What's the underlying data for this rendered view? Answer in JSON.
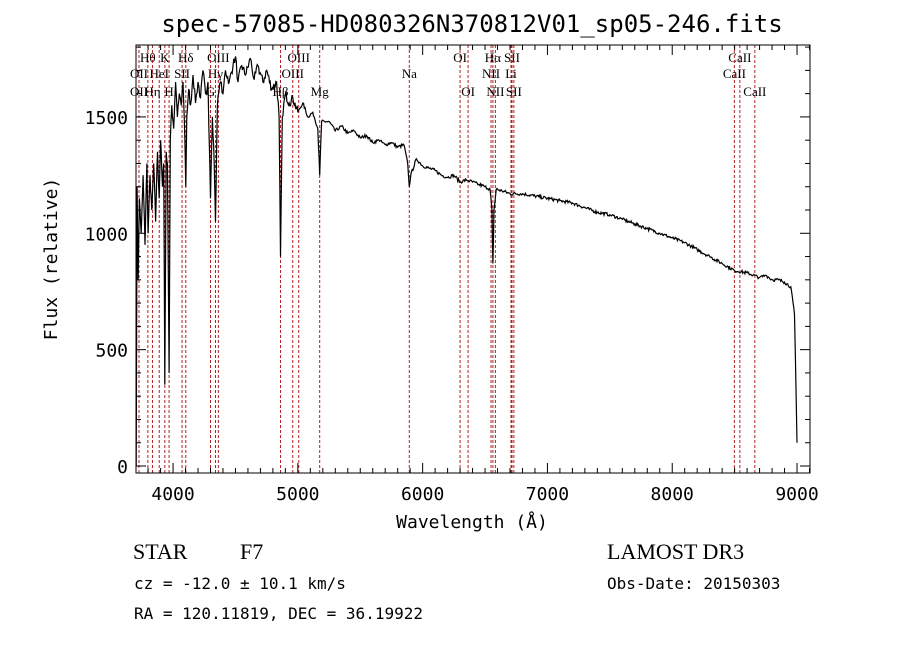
{
  "chart_data": {
    "type": "line",
    "title": "spec-57085-HD080326N370812V01_sp05-246.fits",
    "xlabel": "Wavelength (Å)",
    "ylabel": "Flux (relative)",
    "xlim": [
      3703,
      9104
    ],
    "ylim": [
      -30,
      1809
    ],
    "xticks": [
      4000,
      5000,
      6000,
      7000,
      8000,
      9000
    ],
    "yticks": [
      0,
      500,
      1000,
      1500
    ],
    "grid": false,
    "line_color": "#000000",
    "marker_color": "#b22222",
    "series": [
      {
        "name": "spectrum",
        "points": [
          [
            3705,
            0
          ],
          [
            3712,
            1200
          ],
          [
            3720,
            800
          ],
          [
            3730,
            1150
          ],
          [
            3745,
            1000
          ],
          [
            3760,
            1250
          ],
          [
            3775,
            950
          ],
          [
            3790,
            1300
          ],
          [
            3800,
            1000
          ],
          [
            3815,
            1250
          ],
          [
            3830,
            1100
          ],
          [
            3845,
            1300
          ],
          [
            3860,
            1050
          ],
          [
            3875,
            1350
          ],
          [
            3889,
            1150
          ],
          [
            3900,
            1400
          ],
          [
            3915,
            1200
          ],
          [
            3925,
            1300
          ],
          [
            3934,
            350
          ],
          [
            3945,
            1350
          ],
          [
            3955,
            1300
          ],
          [
            3968,
            400
          ],
          [
            3978,
            1400
          ],
          [
            3990,
            1550
          ],
          [
            4005,
            1450
          ],
          [
            4020,
            1650
          ],
          [
            4035,
            1500
          ],
          [
            4050,
            1600
          ],
          [
            4065,
            1550
          ],
          [
            4080,
            1650
          ],
          [
            4095,
            1400
          ],
          [
            4102,
            1200
          ],
          [
            4110,
            1500
          ],
          [
            4125,
            1620
          ],
          [
            4140,
            1550
          ],
          [
            4160,
            1680
          ],
          [
            4180,
            1560
          ],
          [
            4200,
            1650
          ],
          [
            4220,
            1580
          ],
          [
            4240,
            1700
          ],
          [
            4260,
            1600
          ],
          [
            4280,
            1650
          ],
          [
            4300,
            1150
          ],
          [
            4315,
            1500
          ],
          [
            4330,
            1300
          ],
          [
            4340,
            1050
          ],
          [
            4355,
            1550
          ],
          [
            4380,
            1650
          ],
          [
            4400,
            1600
          ],
          [
            4420,
            1700
          ],
          [
            4450,
            1650
          ],
          [
            4480,
            1720
          ],
          [
            4500,
            1760
          ],
          [
            4520,
            1650
          ],
          [
            4550,
            1720
          ],
          [
            4580,
            1680
          ],
          [
            4620,
            1750
          ],
          [
            4650,
            1660
          ],
          [
            4680,
            1720
          ],
          [
            4720,
            1650
          ],
          [
            4750,
            1700
          ],
          [
            4790,
            1620
          ],
          [
            4830,
            1650
          ],
          [
            4850,
            1500
          ],
          [
            4861,
            900
          ],
          [
            4875,
            1500
          ],
          [
            4900,
            1600
          ],
          [
            4930,
            1560
          ],
          [
            4960,
            1580
          ],
          [
            5000,
            1520
          ],
          [
            5040,
            1560
          ],
          [
            5080,
            1500
          ],
          [
            5120,
            1520
          ],
          [
            5160,
            1450
          ],
          [
            5175,
            1250
          ],
          [
            5190,
            1480
          ],
          [
            5250,
            1480
          ],
          [
            5300,
            1440
          ],
          [
            5350,
            1460
          ],
          [
            5400,
            1430
          ],
          [
            5450,
            1440
          ],
          [
            5500,
            1410
          ],
          [
            5550,
            1420
          ],
          [
            5600,
            1390
          ],
          [
            5650,
            1400
          ],
          [
            5700,
            1380
          ],
          [
            5750,
            1390
          ],
          [
            5800,
            1370
          ],
          [
            5850,
            1380
          ],
          [
            5880,
            1300
          ],
          [
            5893,
            1200
          ],
          [
            5905,
            1250
          ],
          [
            5950,
            1320
          ],
          [
            6000,
            1290
          ],
          [
            6050,
            1280
          ],
          [
            6100,
            1270
          ],
          [
            6150,
            1250
          ],
          [
            6200,
            1240
          ],
          [
            6250,
            1250
          ],
          [
            6300,
            1220
          ],
          [
            6350,
            1230
          ],
          [
            6400,
            1220
          ],
          [
            6450,
            1210
          ],
          [
            6500,
            1200
          ],
          [
            6540,
            1190
          ],
          [
            6555,
            1100
          ],
          [
            6563,
            870
          ],
          [
            6572,
            1100
          ],
          [
            6590,
            1190
          ],
          [
            6650,
            1180
          ],
          [
            6700,
            1170
          ],
          [
            6800,
            1170
          ],
          [
            6900,
            1160
          ],
          [
            7000,
            1150
          ],
          [
            7100,
            1140
          ],
          [
            7200,
            1130
          ],
          [
            7300,
            1110
          ],
          [
            7400,
            1090
          ],
          [
            7500,
            1080
          ],
          [
            7600,
            1060
          ],
          [
            7700,
            1040
          ],
          [
            7800,
            1020
          ],
          [
            7900,
            1000
          ],
          [
            8000,
            980
          ],
          [
            8100,
            960
          ],
          [
            8200,
            930
          ],
          [
            8300,
            900
          ],
          [
            8400,
            870
          ],
          [
            8500,
            840
          ],
          [
            8600,
            830
          ],
          [
            8700,
            810
          ],
          [
            8750,
            820
          ],
          [
            8800,
            800
          ],
          [
            8850,
            800
          ],
          [
            8900,
            790
          ],
          [
            8950,
            770
          ],
          [
            8980,
            650
          ],
          [
            9000,
            100
          ]
        ]
      }
    ],
    "line_markers": [
      {
        "label": "Hθ",
        "wavelength": 3798,
        "row": 1
      },
      {
        "label": "K",
        "wavelength": 3934,
        "row": 1
      },
      {
        "label": "Hδ",
        "wavelength": 4102,
        "row": 1
      },
      {
        "label": "OIII",
        "wavelength": 4363,
        "row": 1
      },
      {
        "label": "OIII",
        "wavelength": 5007,
        "row": 1
      },
      {
        "label": "OI",
        "wavelength": 6300,
        "row": 1
      },
      {
        "label": "Hα",
        "wavelength": 6563,
        "row": 1
      },
      {
        "label": "SII",
        "wavelength": 6716,
        "row": 1
      },
      {
        "label": "CaII",
        "wavelength": 8542,
        "row": 1
      },
      {
        "label": "OII",
        "wavelength": 3727,
        "row": 2
      },
      {
        "label": "HeI",
        "wavelength": 3889,
        "row": 2
      },
      {
        "label": "SII",
        "wavelength": 4072,
        "row": 2
      },
      {
        "label": "Hγ",
        "wavelength": 4340,
        "row": 2
      },
      {
        "label": "OIII",
        "wavelength": 4959,
        "row": 2
      },
      {
        "label": "Na",
        "wavelength": 5893,
        "row": 2
      },
      {
        "label": "NII",
        "wavelength": 6548,
        "row": 2
      },
      {
        "label": "Li",
        "wavelength": 6708,
        "row": 2
      },
      {
        "label": "CaII",
        "wavelength": 8498,
        "row": 2
      },
      {
        "label": "OII",
        "wavelength": 3727,
        "row": 3
      },
      {
        "label": "Hη",
        "wavelength": 3835,
        "row": 3
      },
      {
        "label": "H",
        "wavelength": 3968,
        "row": 3
      },
      {
        "label": "G",
        "wavelength": 4300,
        "row": 3
      },
      {
        "label": "Hβ",
        "wavelength": 4861,
        "row": 3
      },
      {
        "label": "Mg",
        "wavelength": 5175,
        "row": 3
      },
      {
        "label": "OI",
        "wavelength": 6364,
        "row": 3
      },
      {
        "label": "NII",
        "wavelength": 6583,
        "row": 3
      },
      {
        "label": "SII",
        "wavelength": 6731,
        "row": 3
      },
      {
        "label": "CaII",
        "wavelength": 8662,
        "row": 3
      }
    ]
  },
  "info": {
    "object_type": "STAR",
    "subclass": "F7",
    "redshift": "cz = -12.0 ± 10.1 km/s",
    "coords": "RA = 120.11819, DEC =  36.19922",
    "survey": "LAMOST DR3",
    "obs_date": "Obs-Date: 20150303"
  }
}
